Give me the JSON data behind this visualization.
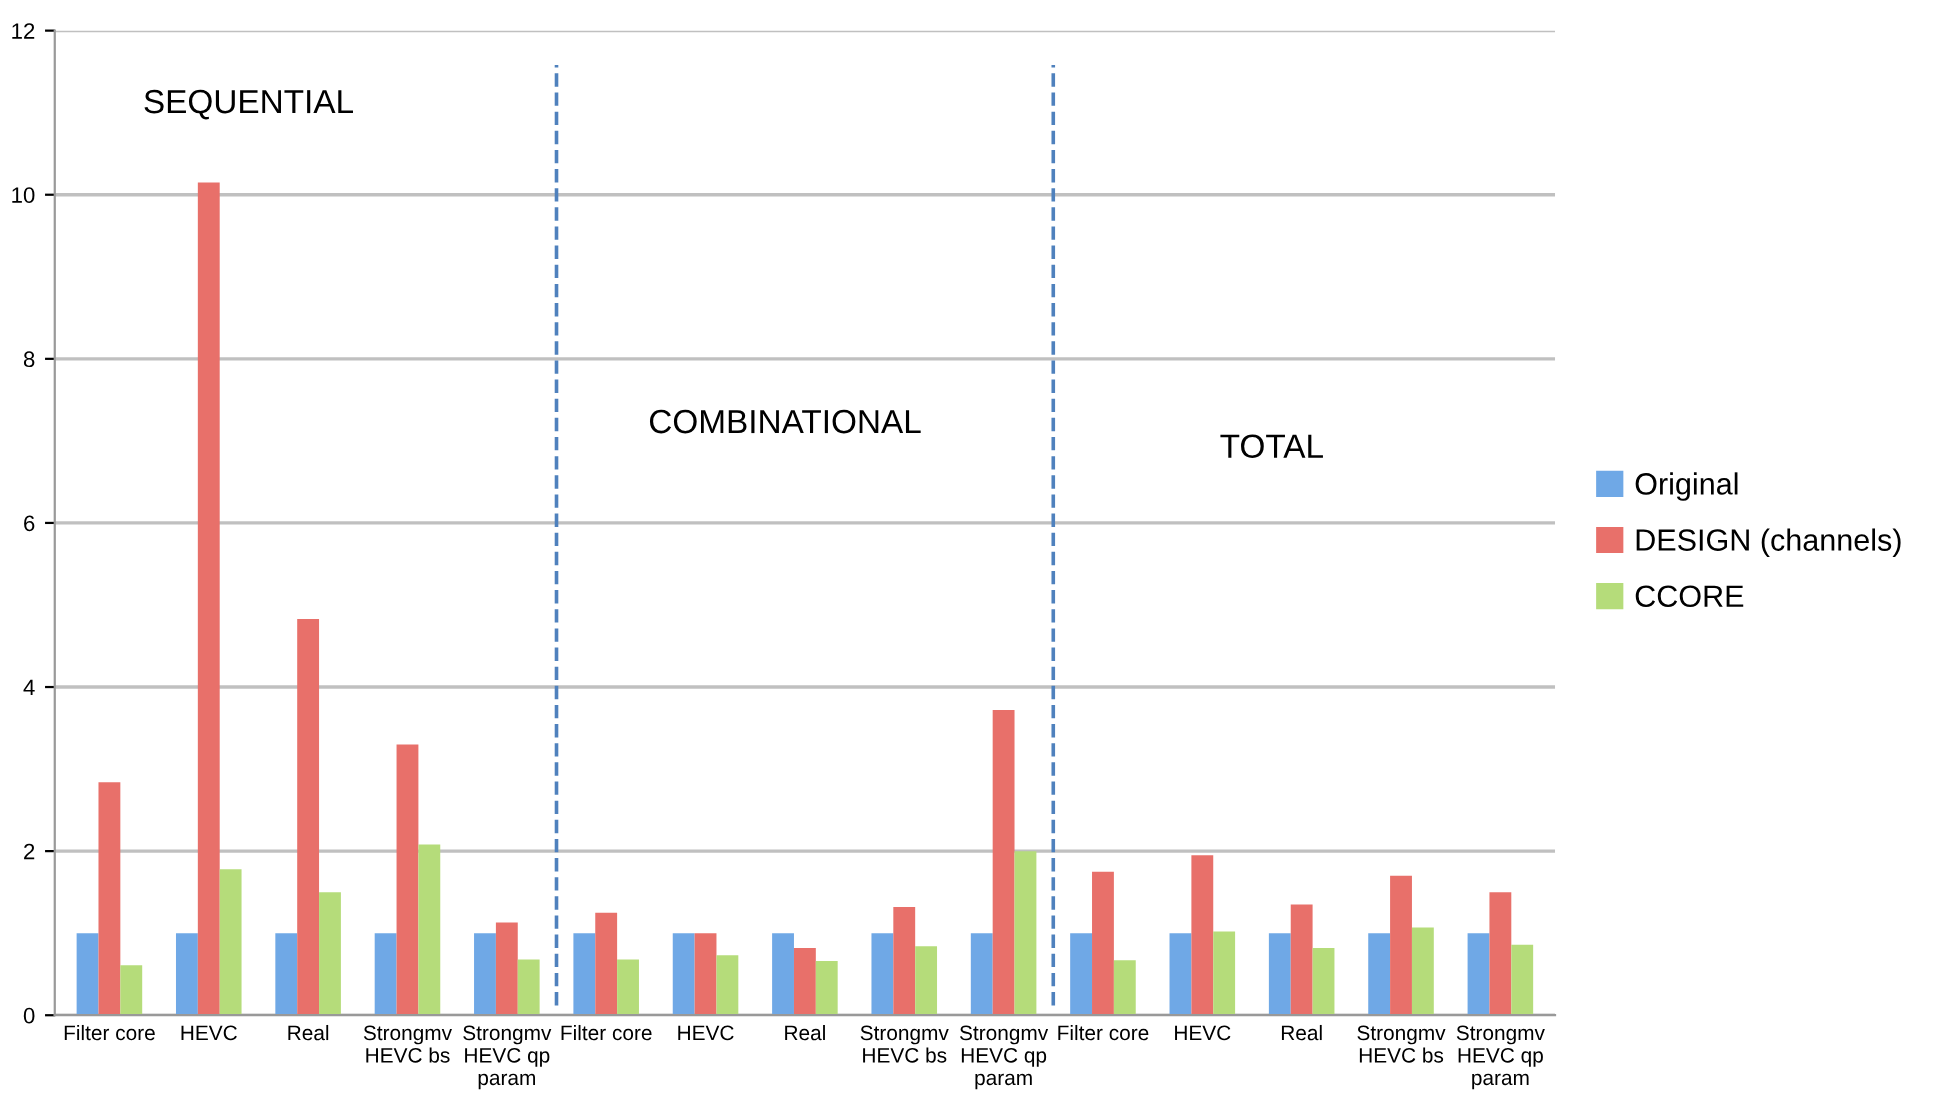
{
  "chart_data": {
    "type": "bar",
    "categories": [
      "Filter core",
      "HEVC",
      "Real",
      "Strongmv\nHEVC bs",
      "Strongmv\nHEVC qp\nparam",
      "Filter core",
      "HEVC",
      "Real",
      "Strongmv\nHEVC bs",
      "Strongmv\nHEVC qp\nparam",
      "Filter core",
      "HEVC",
      "Real",
      "Strongmv\nHEVC bs",
      "Strongmv\nHEVC qp\nparam"
    ],
    "series": [
      {
        "name": "Original",
        "color": "#6fa8e6",
        "values": [
          1,
          1,
          1,
          1,
          1,
          1,
          1,
          1,
          1,
          1,
          1,
          1,
          1,
          1,
          1
        ]
      },
      {
        "name": "DESIGN (channels)",
        "color": "#e8706a",
        "values": [
          2.84,
          10.15,
          4.83,
          3.3,
          1.13,
          1.25,
          1.0,
          0.82,
          1.32,
          3.72,
          1.75,
          1.95,
          1.35,
          1.7,
          1.5
        ]
      },
      {
        "name": "CCORE",
        "color": "#b5dc7a",
        "values": [
          0.61,
          1.78,
          1.5,
          2.08,
          0.68,
          0.68,
          0.73,
          0.66,
          0.84,
          2.0,
          0.67,
          1.02,
          0.82,
          1.07,
          0.86
        ]
      }
    ],
    "annotations": [
      "SEQUENTIAL",
      "COMBINATIONAL",
      "TOTAL"
    ],
    "ylim": [
      0,
      12
    ],
    "yticks": [
      0,
      2,
      4,
      6,
      8,
      10,
      12
    ],
    "grid": "y",
    "legend": "right"
  }
}
